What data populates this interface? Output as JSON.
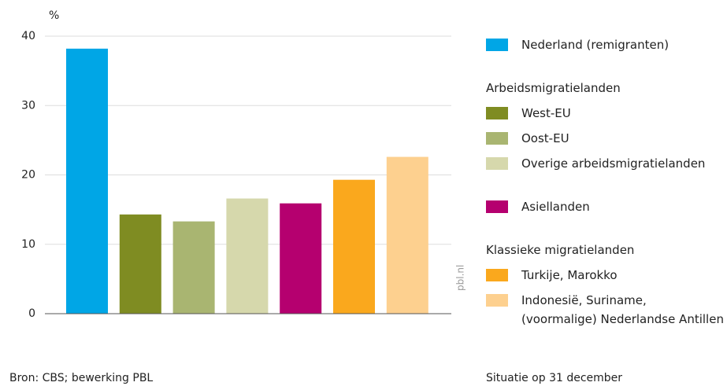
{
  "chart_data": {
    "type": "bar",
    "y_label": "%",
    "ylim": [
      0,
      40
    ],
    "yticks": [
      0,
      10,
      20,
      30,
      40
    ],
    "grid": true,
    "watermark": "pbl.nl",
    "source": "Bron: CBS; bewerking PBL",
    "note": "Situatie op 31 december",
    "groups": [
      {
        "series": [
          {
            "name": "Nederland (remigranten)",
            "color": "#00a6e6",
            "values": [
              38.2
            ]
          }
        ]
      },
      {
        "title": "Arbeidsmigratielanden",
        "series": [
          {
            "name": "West-EU",
            "color": "#7f8c22",
            "values": [
              14.3
            ]
          },
          {
            "name": "Oost-EU",
            "color": "#a9b571",
            "values": [
              13.3
            ]
          },
          {
            "name": "Overige arbeidsmigratielanden",
            "color": "#d6d8ac",
            "values": [
              16.6
            ]
          }
        ]
      },
      {
        "series": [
          {
            "name": "Asiellanden",
            "color": "#b5006f",
            "values": [
              15.9
            ]
          }
        ]
      },
      {
        "title": "Klassieke migratielanden",
        "series": [
          {
            "name": "Turkije, Marokko",
            "color": "#faa81d",
            "values": [
              19.3
            ]
          },
          {
            "name": "Indonesië, Suriname,\n(voormalige) Nederlandse Antillen",
            "color": "#fdd08f",
            "values": [
              22.6
            ]
          }
        ]
      }
    ]
  }
}
